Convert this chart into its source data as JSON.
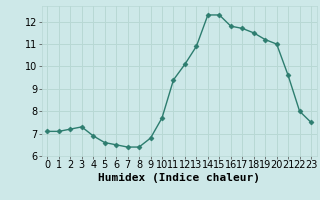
{
  "x": [
    0,
    1,
    2,
    3,
    4,
    5,
    6,
    7,
    8,
    9,
    10,
    11,
    12,
    13,
    14,
    15,
    16,
    17,
    18,
    19,
    20,
    21,
    22,
    23
  ],
  "y": [
    7.1,
    7.1,
    7.2,
    7.3,
    6.9,
    6.6,
    6.5,
    6.4,
    6.4,
    6.8,
    7.7,
    9.4,
    10.1,
    10.9,
    12.3,
    12.3,
    11.8,
    11.7,
    11.5,
    11.2,
    11.0,
    9.6,
    8.0,
    7.5
  ],
  "line_color": "#2d7d6f",
  "marker": "D",
  "marker_size": 2.5,
  "linewidth": 1.0,
  "xlabel": "Humidex (Indice chaleur)",
  "xlim": [
    -0.5,
    23.5
  ],
  "ylim": [
    6.0,
    12.7
  ],
  "yticks": [
    6,
    7,
    8,
    9,
    10,
    11,
    12
  ],
  "xtick_labels": [
    "0",
    "1",
    "2",
    "3",
    "4",
    "5",
    "6",
    "7",
    "8",
    "9",
    "10",
    "11",
    "12",
    "13",
    "14",
    "15",
    "16",
    "17",
    "18",
    "19",
    "20",
    "21",
    "22",
    "23"
  ],
  "background_color": "#cde8e8",
  "grid_color": "#b8d8d4",
  "tick_fontsize": 7,
  "xlabel_fontsize": 8
}
